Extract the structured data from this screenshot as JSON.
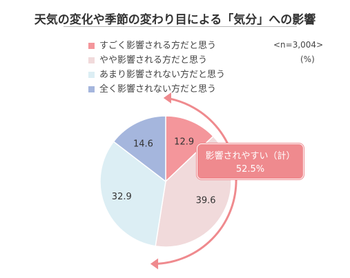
{
  "title": "天気の変化や季節の変わり目による「気分」への影響",
  "sample_size": "<n=3,004>",
  "unit": "(%)",
  "callout": {
    "label": "影響されやすい（計）",
    "value": "52.5%"
  },
  "colors": {
    "arrow": "#ef8a8e",
    "callout_bg": "#ef8a8e"
  },
  "chart_data": {
    "type": "pie",
    "categories": [
      "すごく影響される方だと思う",
      "やや影響される方だと思う",
      "あまり影響されない方だと思う",
      "全く影響されない方だと思う"
    ],
    "values": [
      12.9,
      39.6,
      32.9,
      14.6
    ],
    "labels": [
      "12.9",
      "39.6",
      "32.9",
      "14.6"
    ],
    "colors": [
      "#f4969b",
      "#f1dadb",
      "#dceef4",
      "#a5b6dd"
    ],
    "legend_position": "top-left",
    "start": "12 o'clock",
    "direction": "clockwise"
  }
}
